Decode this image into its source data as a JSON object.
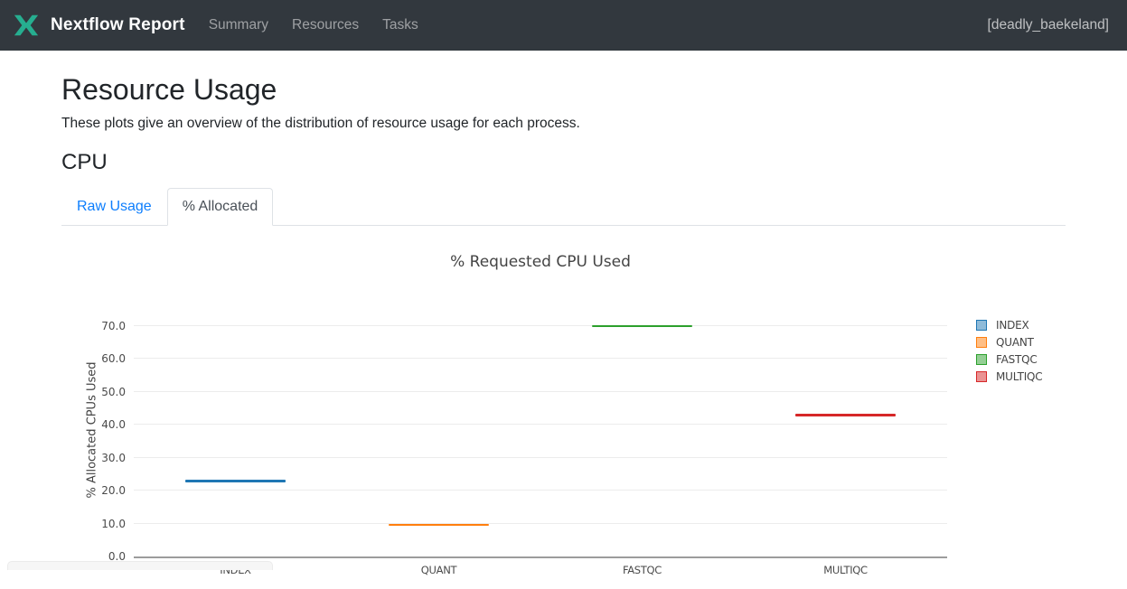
{
  "header": {
    "brand": "Nextflow Report",
    "nav_items": [
      "Summary",
      "Resources",
      "Tasks"
    ],
    "run_name": "[deadly_baekeland]",
    "logo_color": "#26ae90"
  },
  "page": {
    "title": "Resource Usage",
    "description": "These plots give an overview of the distribution of resource usage for each process.",
    "section": "CPU"
  },
  "tabs": {
    "raw": "Raw Usage",
    "allocated": "% Allocated",
    "active_tab": "% Allocated"
  },
  "chart_data": {
    "type": "box",
    "title": "% Requested CPU Used",
    "xlabel": "",
    "ylabel": "% Allocated CPUs Used",
    "categories": [
      "INDEX",
      "QUANT",
      "FASTQC",
      "MULTIQC"
    ],
    "values": [
      22.9,
      9.5,
      69.9,
      42.8
    ],
    "colors": [
      "#1f77b4",
      "#ff7f0e",
      "#2ca02c",
      "#d62728"
    ],
    "legend": [
      "INDEX",
      "QUANT",
      "FASTQC",
      "MULTIQC"
    ],
    "legend_position": "right",
    "yticks": [
      0,
      10,
      20,
      30,
      40,
      50,
      60,
      70
    ],
    "ytick_format": "one_decimal",
    "ylim": [
      0,
      76.8
    ],
    "grid": true,
    "axis_color": "#9c9c9c",
    "grid_color": "#ececec"
  }
}
